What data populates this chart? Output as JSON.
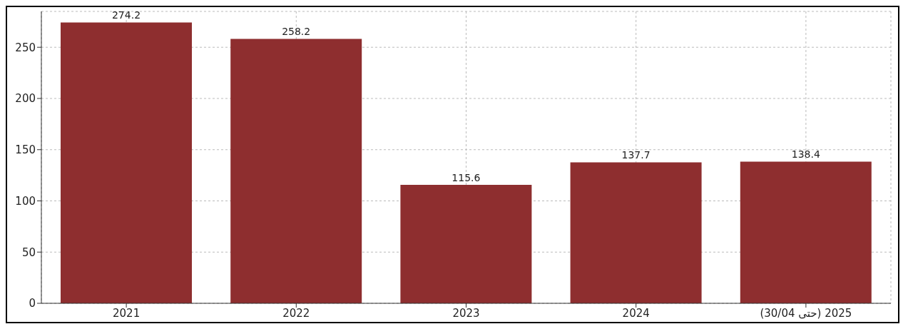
{
  "chart_data": {
    "type": "bar",
    "categories": [
      "2021",
      "2022",
      "2023",
      "2024",
      "2025 (حتى 30/04)"
    ],
    "values": [
      274.2,
      258.2,
      115.6,
      137.7,
      138.4
    ],
    "color": "#8e2e2f",
    "ylim": [
      0,
      285
    ],
    "yticks": [
      0,
      50,
      100,
      150,
      200,
      250
    ],
    "grid": true,
    "data_labels": true
  }
}
